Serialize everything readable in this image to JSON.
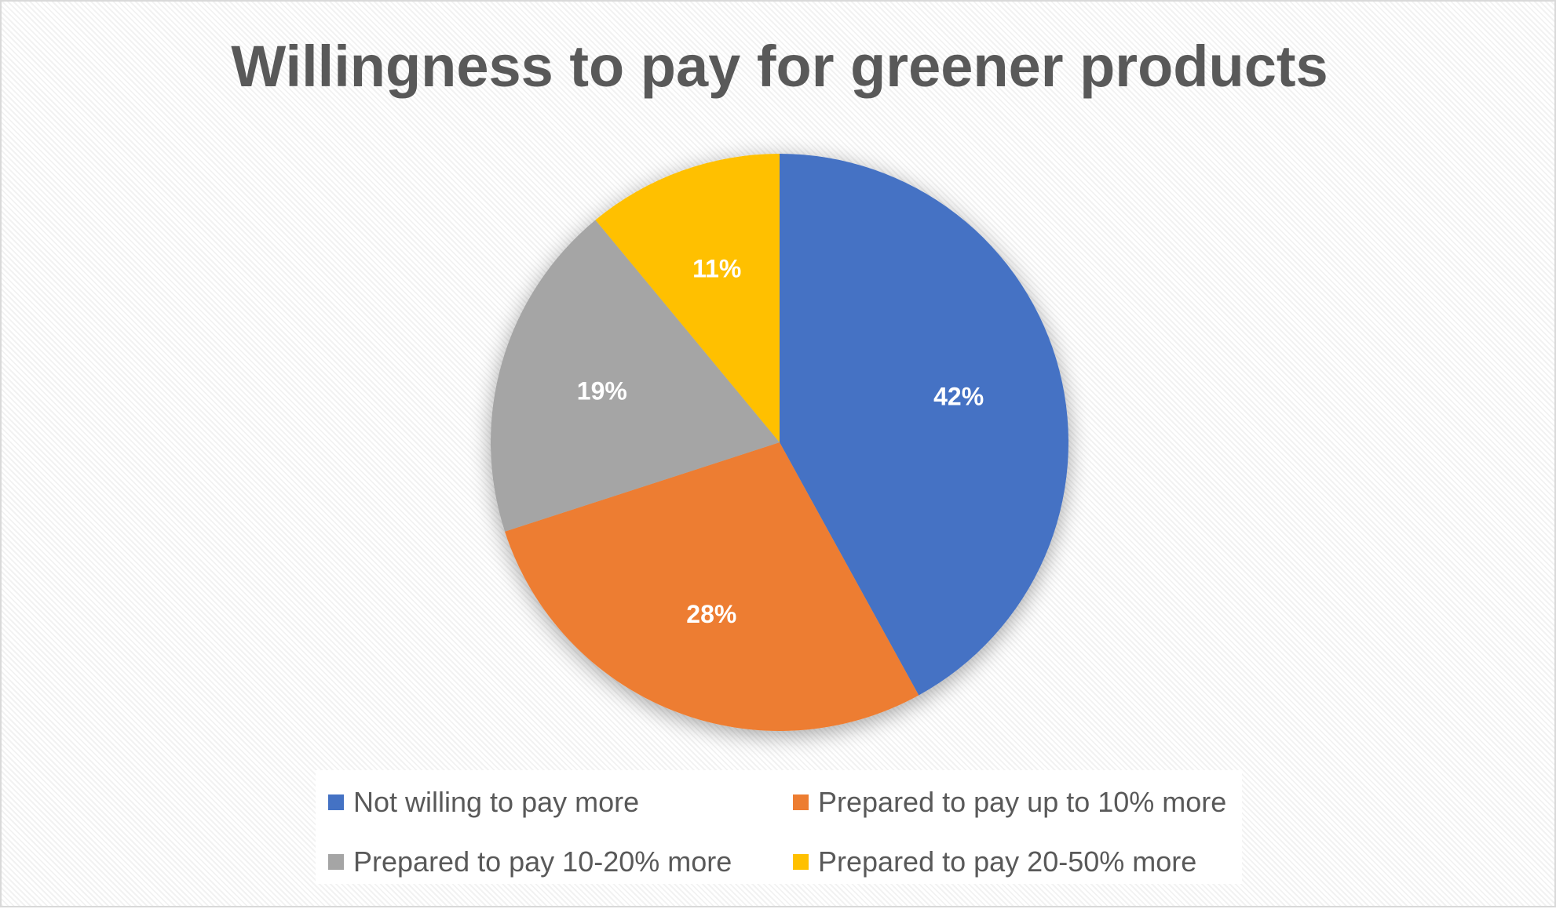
{
  "chart_data": {
    "type": "pie",
    "title": "Willingness to pay for greener products",
    "categories": [
      "Not willing to pay more",
      "Prepared to pay up to 10% more",
      "Prepared to pay 10-20% more",
      "Prepared to pay 20-50% more"
    ],
    "values": [
      42,
      28,
      19,
      11
    ],
    "labels": [
      "42%",
      "28%",
      "19%",
      "11%"
    ],
    "colors": [
      "#4472C4",
      "#ED7D31",
      "#A5A5A5",
      "#FFC000"
    ],
    "start_angle_deg": 0,
    "direction": "clockwise",
    "legend_position": "bottom"
  },
  "title": "Willingness to pay for greener products",
  "legend": [
    {
      "label": "Not willing to pay more",
      "color": "#4472C4"
    },
    {
      "label": "Prepared to pay up to 10% more",
      "color": "#ED7D31"
    },
    {
      "label": "Prepared to pay 10-20% more",
      "color": "#A5A5A5"
    },
    {
      "label": "Prepared to pay 20-50% more",
      "color": "#FFC000"
    }
  ]
}
